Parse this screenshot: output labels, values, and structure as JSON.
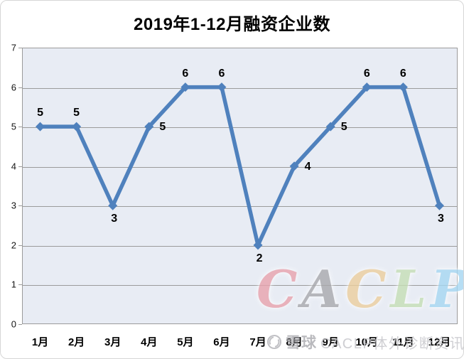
{
  "chart_data": {
    "type": "line",
    "title": "2019年1-12月融资企业数",
    "categories": [
      "1月",
      "2月",
      "3月",
      "4月",
      "5月",
      "6月",
      "7月",
      "8月",
      "9月",
      "10月",
      "11月",
      "12月"
    ],
    "values": [
      5,
      5,
      3,
      5,
      6,
      6,
      2,
      4,
      5,
      6,
      6,
      3
    ],
    "xlabel": "",
    "ylabel": "",
    "ylim": [
      0,
      7
    ],
    "y_ticks": [
      "7",
      "6",
      "5",
      "4",
      "3",
      "2",
      "1",
      "0"
    ],
    "grid": true,
    "legend": "none",
    "line_color": "#4f81bd",
    "marker": "diamond",
    "plot_bg": "#e8ecf4",
    "gridline_color": "#9b9b9b",
    "label_positions": [
      "above",
      "above",
      "below",
      "right",
      "above",
      "above",
      "below",
      "right",
      "right",
      "above",
      "above",
      "below"
    ]
  },
  "watermark": {
    "big_letters": [
      {
        "char": "C",
        "color": "#e8a3ae"
      },
      {
        "char": "A",
        "color": "#a9a9ad"
      },
      {
        "char": "C",
        "color": "#eccf9e"
      },
      {
        "char": "L",
        "color": "#c6dfb6"
      },
      {
        "char": "P",
        "color": "#a6d7f2"
      }
    ],
    "bottom_brand": "雪球",
    "bottom_suffix": "CACLP体外诊断资讯.",
    "logo_icon": "xueqiu-camera-icon",
    "logo_color": "#b2b2b7"
  }
}
